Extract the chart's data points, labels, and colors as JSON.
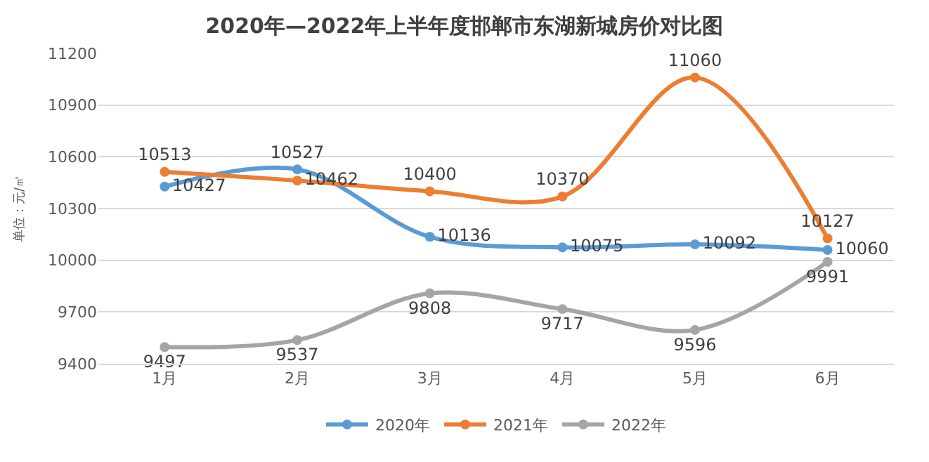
{
  "chart_data": {
    "type": "line",
    "title": "2020年—2022年上半年度邯郸市东湖新城房价对比图",
    "ylabel": "单位：元/㎡",
    "categories": [
      "1月",
      "2月",
      "3月",
      "4月",
      "5月",
      "6月"
    ],
    "series": [
      {
        "name": "2020年",
        "color": "#5b9bd5",
        "values": [
          10427,
          10527,
          10136,
          10075,
          10092,
          10060
        ]
      },
      {
        "name": "2021年",
        "color": "#ed7d31",
        "values": [
          10513,
          10462,
          10400,
          10370,
          11060,
          10127
        ]
      },
      {
        "name": "2022年",
        "color": "#a5a5a5",
        "values": [
          9497,
          9537,
          9808,
          9717,
          9596,
          9991
        ]
      }
    ],
    "ylim": [
      9400,
      11200
    ],
    "yticks": [
      9400,
      9700,
      10000,
      10300,
      10600,
      10900,
      11200
    ],
    "grid": "y",
    "legend": "bottom",
    "marker": "circle",
    "line_style": "solid",
    "data_labels": true
  }
}
